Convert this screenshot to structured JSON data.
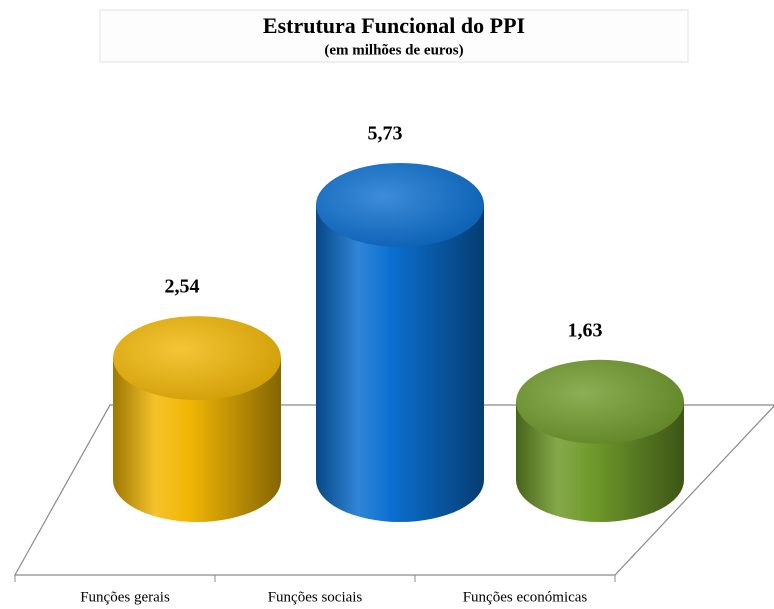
{
  "chart_data": {
    "type": "bar",
    "title": "Estrutura Funcional do PPI",
    "subtitle": "(em milhões de euros)",
    "categories": [
      "Funções gerais",
      "Funções sociais",
      "Funções económicas"
    ],
    "values": [
      2.54,
      5.73,
      1.63
    ],
    "value_labels": [
      "2,54",
      "5,73",
      "1,63"
    ],
    "colors": [
      "#f2b705",
      "#0b6fd0",
      "#6f9a2a"
    ]
  }
}
